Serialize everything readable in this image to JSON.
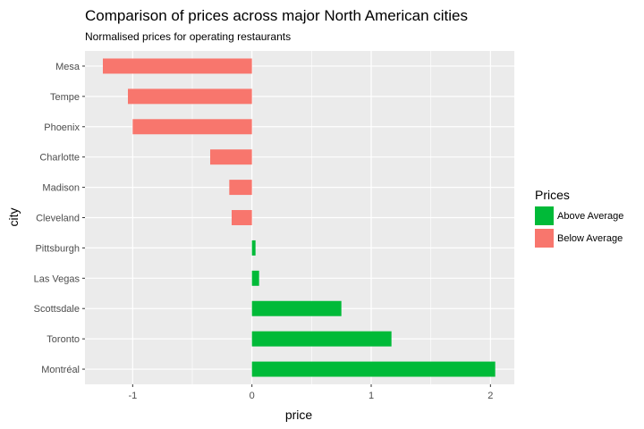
{
  "chart_data": {
    "type": "bar",
    "orientation": "horizontal",
    "title": "Comparison of prices across major North American cities",
    "subtitle": "Normalised prices for operating restaurants",
    "xlabel": "price",
    "ylabel": "city",
    "xlim": [
      -1.4,
      2.2
    ],
    "xticks": [
      -1,
      0,
      1,
      2
    ],
    "grid": true,
    "legend_position": "right",
    "legend_title": "Prices",
    "categories": [
      "Mesa",
      "Tempe",
      "Phoenix",
      "Charlotte",
      "Madison",
      "Cleveland",
      "Pittsburgh",
      "Las Vegas",
      "Scottsdale",
      "Toronto",
      "Montréal"
    ],
    "values": [
      -1.25,
      -1.04,
      -1.0,
      -0.35,
      -0.19,
      -0.17,
      0.03,
      0.06,
      0.75,
      1.17,
      2.04
    ],
    "groups": [
      "Below Average",
      "Below Average",
      "Below Average",
      "Below Average",
      "Below Average",
      "Below Average",
      "Above Average",
      "Above Average",
      "Above Average",
      "Above Average",
      "Above Average"
    ],
    "legend": [
      {
        "label": "Above Average",
        "color": "#00BA38"
      },
      {
        "label": "Below Average",
        "color": "#F8766D"
      }
    ],
    "colors": {
      "Above Average": "#00BA38",
      "Below Average": "#F8766D",
      "panel": "#EBEBEB",
      "grid": "#FFFFFF"
    }
  }
}
